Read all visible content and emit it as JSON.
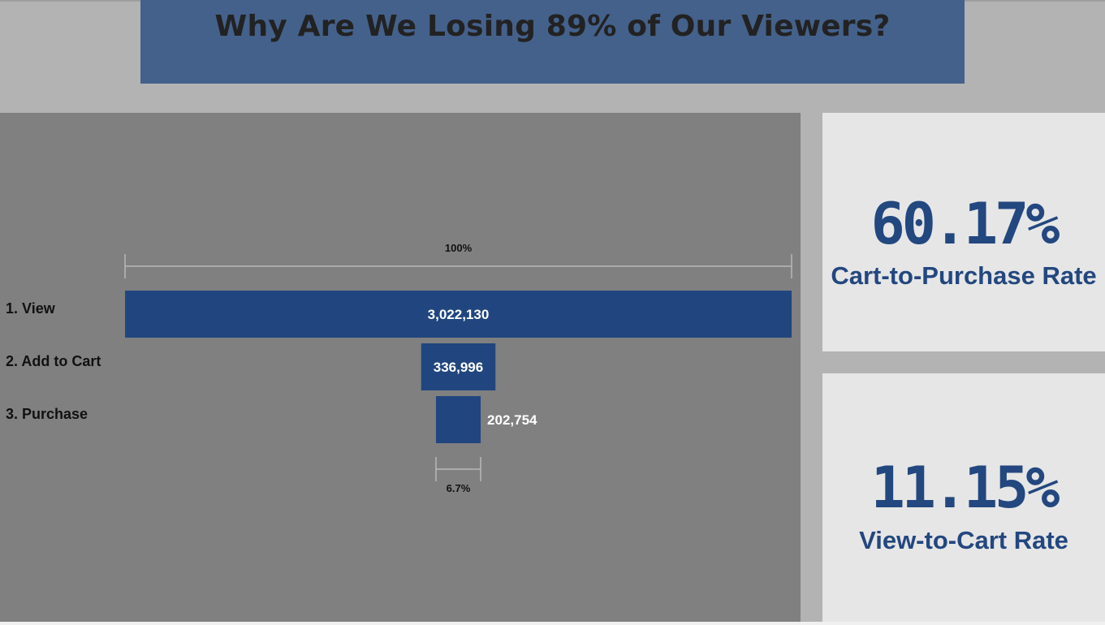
{
  "title": "Why Are We Losing 89% of Our Viewers?",
  "colors": {
    "banner": "#44618b",
    "bar": "#21467f",
    "panel": "#808080",
    "kpi_text": "#23477f",
    "kpi_bg": "#e6e6e6"
  },
  "chart_data": {
    "type": "bar",
    "subtype": "funnel",
    "categories": [
      "1. View",
      "2. Add to Cart",
      "3. Purchase"
    ],
    "values": [
      3022130,
      336996,
      202754
    ],
    "value_labels": [
      "3,022,130",
      "336,996",
      "202,754"
    ],
    "top_annotation": "100%",
    "bottom_annotation": "6.7%",
    "orientation": "horizontal",
    "alignment": "centered"
  },
  "kpis": [
    {
      "value": "60.17%",
      "label": "Cart-to-Purchase Rate"
    },
    {
      "value": "11.15%",
      "label": "View-to-Cart Rate"
    }
  ]
}
